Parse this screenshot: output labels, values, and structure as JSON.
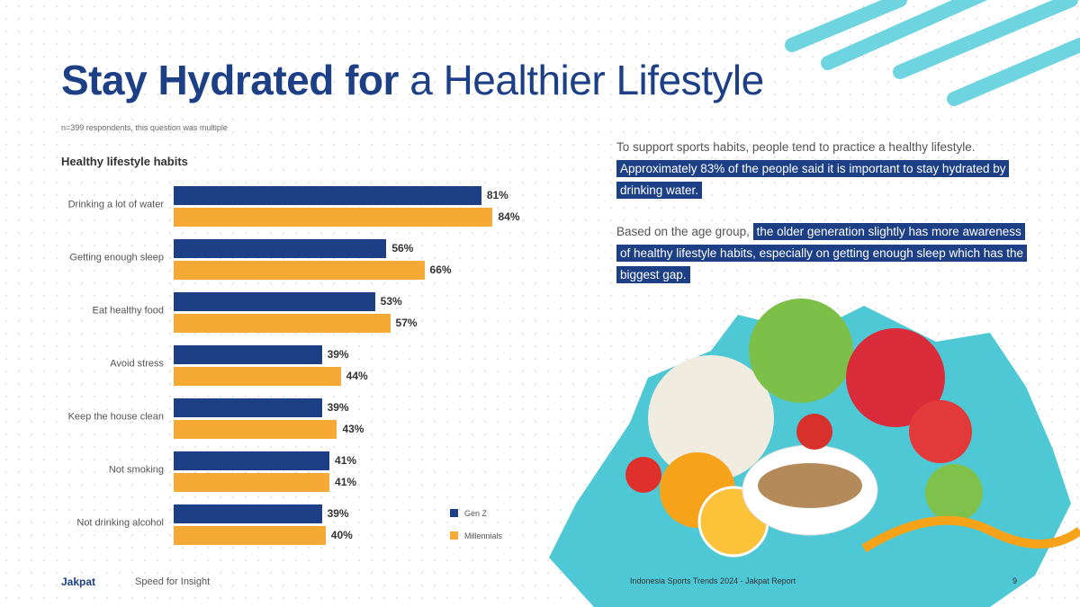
{
  "header": {
    "title_bold": "Stay Hydrated for",
    "title_rest": "a Healthier Lifestyle",
    "note": "n=399 respondents, this question was multiple"
  },
  "chart_data": {
    "type": "hbar",
    "title": "Healthy lifestyle habits",
    "categories": [
      "Drinking a lot of water",
      "Getting enough sleep",
      "Eat healthy food",
      "Avoid stress",
      "Keep the house clean",
      "Not smoking",
      "Not drinking alcohol"
    ],
    "series": [
      {
        "name": "Gen Z",
        "color": "#1c3f86",
        "values": [
          81,
          56,
          53,
          39,
          39,
          41,
          39
        ],
        "value_labels": [
          "81%",
          "56%",
          "53%",
          "39%",
          "39%",
          "41%",
          "39%"
        ]
      },
      {
        "name": "Millennials",
        "color": "#f7a935",
        "values": [
          84,
          66,
          57,
          44,
          43,
          41,
          40
        ],
        "value_labels": [
          "84%",
          "66%",
          "57%",
          "44%",
          "43%",
          "41%",
          "40%"
        ]
      }
    ],
    "legend": "bottom-right"
  },
  "insights": [
    {
      "plain": "To support sports habits, people tend to practice a healthy lifestyle.",
      "highlight": "Approximately 83% of the people said it is important to stay hydrated by drinking water."
    },
    {
      "plain": "Based on the age group,",
      "highlight": "the older generation slightly has more awareness of healthy lifestyle habits, especially on getting enough sleep which has the biggest gap."
    }
  ],
  "footer": {
    "brand": "Jakpat",
    "tagline": "Speed for Insight",
    "source": "Indonesia Sports Trends 2024 - Jakpat Report",
    "page": "9"
  }
}
